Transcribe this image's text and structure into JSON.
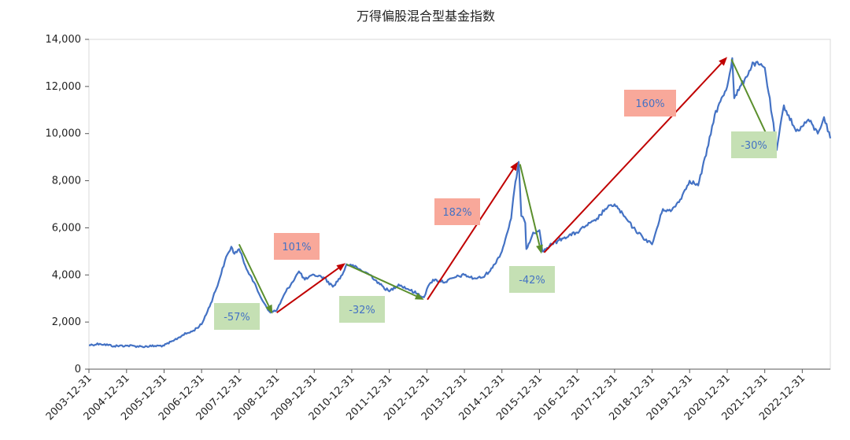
{
  "chart_data": {
    "type": "line",
    "title": "万得偏股混合型基金指数",
    "xlabel": "",
    "ylabel": "",
    "ylim": [
      0,
      14000
    ],
    "yticks": [
      0,
      2000,
      4000,
      6000,
      8000,
      10000,
      12000,
      14000
    ],
    "ytick_labels": [
      "0",
      "2,000",
      "4,000",
      "6,000",
      "8,000",
      "10,000",
      "12,000",
      "14,000"
    ],
    "xlim": [
      "2003-12-31",
      "2023-09-30"
    ],
    "xtick_labels": [
      "2003-12-31",
      "2004-12-31",
      "2005-12-31",
      "2006-12-31",
      "2007-12-31",
      "2008-12-31",
      "2009-12-31",
      "2010-12-31",
      "2011-12-31",
      "2012-12-31",
      "2013-12-31",
      "2014-12-31",
      "2015-12-31",
      "2016-12-31",
      "2017-12-31",
      "2018-12-31",
      "2019-12-31",
      "2020-12-31",
      "2021-12-31",
      "2022-12-31"
    ],
    "grid": false,
    "line_color": "#4472C4",
    "series": [
      {
        "x": [
          "2003-12-31",
          "2004-04-15",
          "2004-09-01",
          "2004-12-31",
          "2005-06-01",
          "2005-12-31",
          "2006-03-31",
          "2006-06-30",
          "2006-09-30",
          "2006-12-31",
          "2007-03-31",
          "2007-06-15",
          "2007-08-15",
          "2007-10-16",
          "2007-11-15",
          "2007-12-31",
          "2008-02-28",
          "2008-04-30",
          "2008-06-30",
          "2008-08-31",
          "2008-10-31",
          "2008-12-31",
          "2009-03-31",
          "2009-06-30",
          "2009-08-04",
          "2009-09-30",
          "2009-12-31",
          "2010-03-31",
          "2010-06-30",
          "2010-09-30",
          "2010-11-10",
          "2010-12-31",
          "2011-03-31",
          "2011-06-30",
          "2011-09-30",
          "2011-12-31",
          "2012-03-31",
          "2012-06-30",
          "2012-09-30",
          "2012-12-03",
          "2012-12-31",
          "2013-02-28",
          "2013-06-30",
          "2013-09-30",
          "2013-12-31",
          "2014-03-31",
          "2014-06-30",
          "2014-09-30",
          "2014-12-31",
          "2015-03-31",
          "2015-05-01",
          "2015-06-12",
          "2015-07-08",
          "2015-08-15",
          "2015-08-26",
          "2015-10-31",
          "2015-12-31",
          "2016-01-28",
          "2016-04-30",
          "2016-08-31",
          "2016-12-31",
          "2017-03-31",
          "2017-06-30",
          "2017-09-30",
          "2017-12-31",
          "2018-03-31",
          "2018-06-30",
          "2018-09-30",
          "2018-12-31",
          "2019-04-15",
          "2019-06-30",
          "2019-09-30",
          "2019-12-31",
          "2020-03-23",
          "2020-06-30",
          "2020-08-31",
          "2020-12-31",
          "2021-02-18",
          "2021-03-09",
          "2021-06-30",
          "2021-09-14",
          "2021-12-31",
          "2022-03-15",
          "2022-04-26",
          "2022-07-05",
          "2022-10-31",
          "2022-12-31",
          "2023-02-28",
          "2023-05-31",
          "2023-07-31",
          "2023-09-30"
        ],
        "y": [
          1020,
          1080,
          980,
          1000,
          960,
          1000,
          1200,
          1450,
          1600,
          1900,
          2800,
          3700,
          4600,
          5200,
          4900,
          5100,
          4400,
          3900,
          3300,
          2800,
          2400,
          2500,
          3300,
          3900,
          4150,
          3800,
          4000,
          3900,
          3500,
          4000,
          4450,
          4400,
          4200,
          4000,
          3600,
          3300,
          3600,
          3400,
          3200,
          3050,
          3400,
          3800,
          3700,
          3900,
          4000,
          3850,
          3900,
          4300,
          5000,
          6400,
          7600,
          8800,
          6500,
          6200,
          5100,
          5800,
          5900,
          5000,
          5300,
          5600,
          5800,
          6100,
          6300,
          6800,
          7000,
          6500,
          6000,
          5600,
          5300,
          6800,
          6700,
          7200,
          8000,
          7800,
          9500,
          10800,
          12000,
          13200,
          11500,
          12400,
          13000,
          12800,
          10700,
          9300,
          11200,
          10100,
          10300,
          10600,
          10000,
          10700,
          9800
        ]
      }
    ],
    "annotations": [
      {
        "label": "-57%",
        "color": "#C5E0B4"
      },
      {
        "label": "101%",
        "color": "#F8A89A"
      },
      {
        "label": "-32%",
        "color": "#C5E0B4"
      },
      {
        "label": "182%",
        "color": "#F8A89A"
      },
      {
        "label": "-42%",
        "color": "#C5E0B4"
      },
      {
        "label": "160%",
        "color": "#F8A89A"
      },
      {
        "label": "-30%",
        "color": "#C5E0B4"
      }
    ],
    "arrows": [
      {
        "from": [
          "2007-12-31",
          5300
        ],
        "to": [
          "2008-11-20",
          2350
        ],
        "color": "#5B8F2D"
      },
      {
        "from": [
          "2008-12-31",
          2400
        ],
        "to": [
          "2010-10-31",
          4500
        ],
        "color": "#C00000"
      },
      {
        "from": [
          "2010-11-10",
          4450
        ],
        "to": [
          "2012-12-03",
          2950
        ],
        "color": "#5B8F2D"
      },
      {
        "from": [
          "2013-01-05",
          2950
        ],
        "to": [
          "2015-06-05",
          8800
        ],
        "color": "#C00000"
      },
      {
        "from": [
          "2015-06-25",
          8700
        ],
        "to": [
          "2016-01-20",
          4900
        ],
        "color": "#5B8F2D"
      },
      {
        "from": [
          "2016-02-15",
          4950
        ],
        "to": [
          "2020-12-31",
          13250
        ],
        "color": "#C00000"
      },
      {
        "from": [
          "2021-02-10",
          13150
        ],
        "to": [
          "2022-04-20",
          9100
        ],
        "color": "#5B8F2D"
      }
    ]
  }
}
